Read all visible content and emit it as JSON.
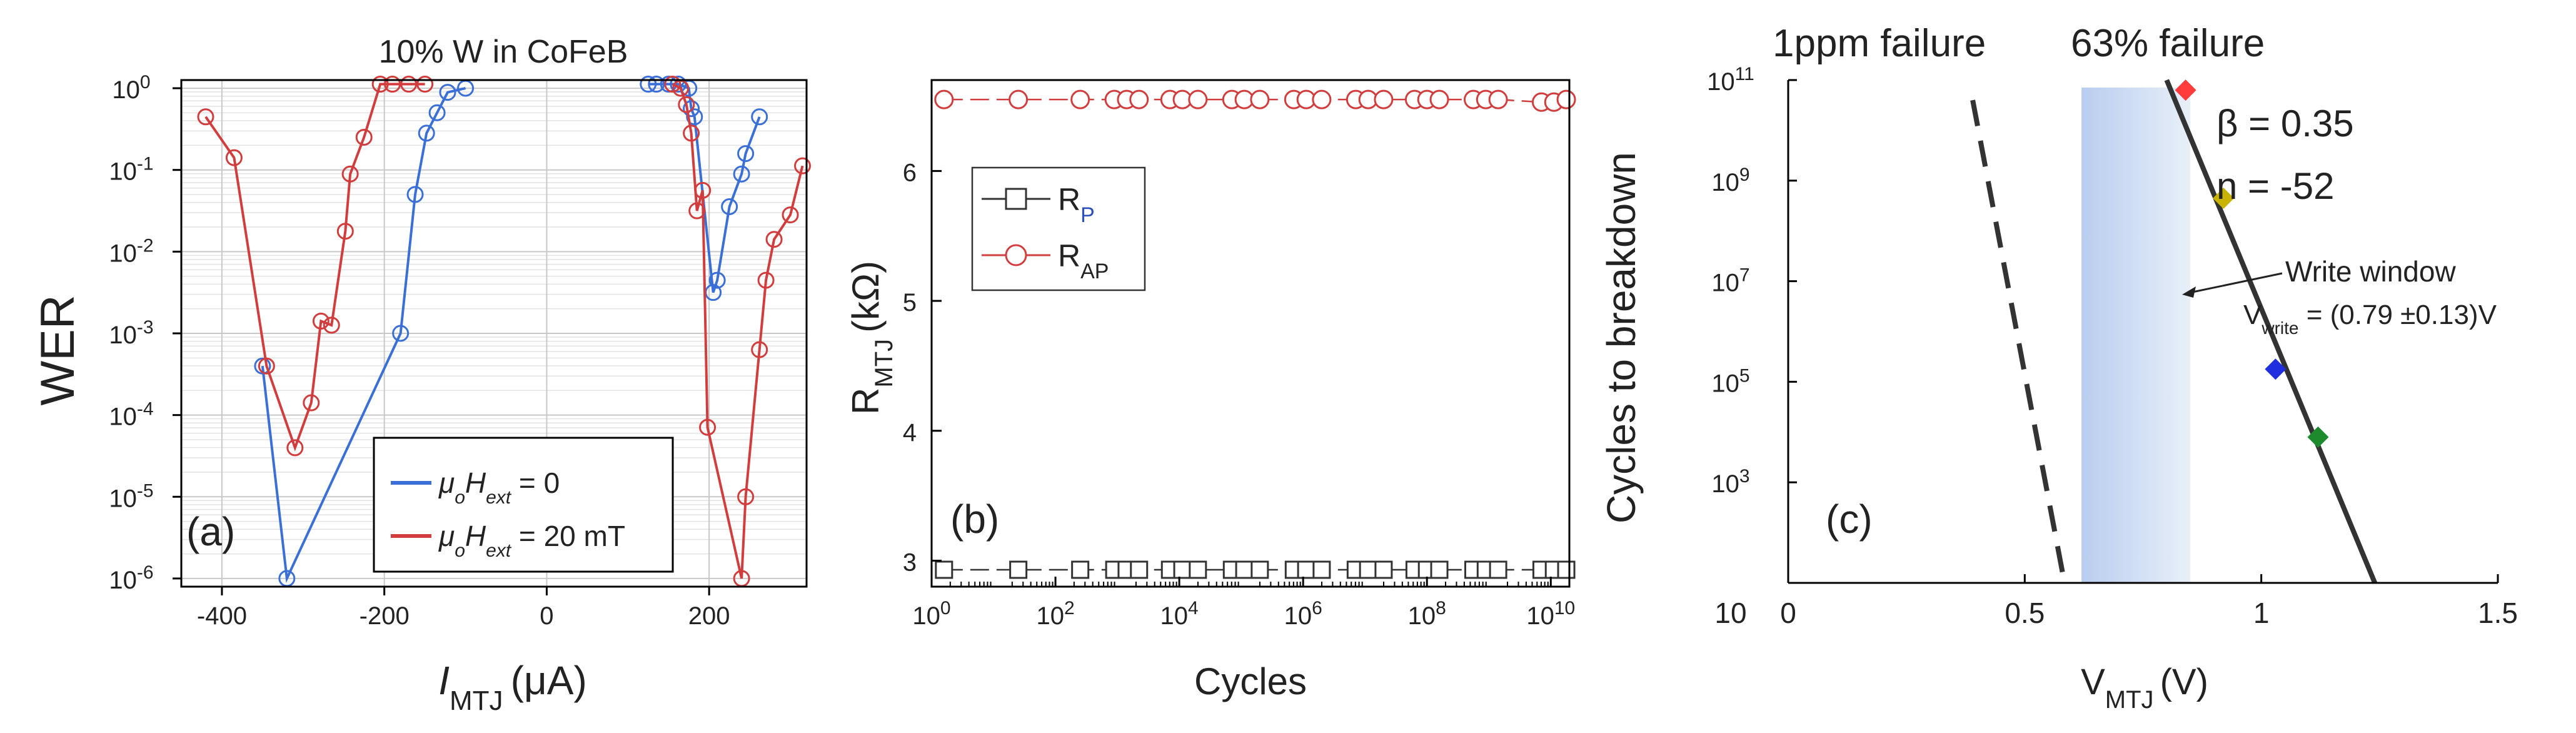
{
  "chart_data": [
    {
      "type": "line",
      "panel": "(a)",
      "title": "10% W in CoFeB",
      "xlabel_main": "I",
      "xlabel_sub": "MTJ",
      "xlabel_unit": "(μA)",
      "ylabel": "WER",
      "xlim": [
        -450,
        320
      ],
      "ylim_exp": [
        -6.1,
        0.1
      ],
      "x_ticks": [
        -400,
        -200,
        0,
        200
      ],
      "x_tick_labels": [
        "-400",
        "-200",
        "0",
        "200"
      ],
      "y_tick_exps": [
        0,
        -1,
        -2,
        -3,
        -4,
        -5,
        -6
      ],
      "y_tick_labels": [
        "0",
        "-1",
        "-2",
        "-3",
        "-4",
        "-5",
        "-6"
      ],
      "y_tick_base": "10",
      "grid": true,
      "legend_position": "bottom-right",
      "series": [
        {
          "name": "μoHext = 0",
          "legend_main": "μ",
          "legend_sub1": "o",
          "legend_mid": "H",
          "legend_sub2": "ext",
          "legend_value": " = 0",
          "color": "#3a6fd8",
          "branches": [
            {
              "x": [
                -350,
                -320,
                -180,
                -162,
                -148,
                -135,
                -122,
                -100
              ],
              "y_exp": [
                -3.4,
                -6.0,
                -3.0,
                -1.3,
                -0.55,
                -0.3,
                -0.05,
                0.0
              ]
            },
            {
              "x": [
                125,
                135,
                150,
                162,
                175,
                178,
                182,
                205,
                210,
                225,
                240,
                245,
                262
              ],
              "y_exp": [
                0.05,
                0.05,
                0.05,
                0.05,
                0.0,
                -0.25,
                -0.35,
                -2.5,
                -2.35,
                -1.45,
                -1.05,
                -0.8,
                -0.35
              ]
            }
          ]
        },
        {
          "name": "μoHext = 20 mT",
          "legend_main": "μ",
          "legend_sub1": "o",
          "legend_mid": "H",
          "legend_sub2": "ext",
          "legend_value": " = 20 mT",
          "color": "#d23c3c",
          "branches": [
            {
              "x": [
                -420,
                -385,
                -345,
                -310,
                -290,
                -278,
                -265,
                -248,
                -242,
                -225,
                -205,
                -190,
                -170,
                -150
              ],
              "y_exp": [
                -0.35,
                -0.85,
                -3.4,
                -4.4,
                -3.85,
                -2.85,
                -2.9,
                -1.75,
                -1.05,
                -0.6,
                0.05,
                0.05,
                0.05,
                0.05
              ]
            },
            {
              "x": [
                155,
                165,
                172,
                178,
                185,
                192,
                198,
                240,
                245,
                262,
                270,
                280,
                300,
                315
              ],
              "y_exp": [
                0.05,
                0.0,
                -0.2,
                -0.55,
                -1.5,
                -1.25,
                -4.15,
                -6.0,
                -5.0,
                -3.2,
                -2.35,
                -1.85,
                -1.55,
                -0.95
              ]
            }
          ]
        }
      ]
    },
    {
      "type": "scatter",
      "panel": "(b)",
      "xlabel": "Cycles",
      "ylabel_main": "R",
      "ylabel_sub": "MTJ",
      "ylabel_unit": "(kΩ)",
      "xlim_exp": [
        0,
        10.3
      ],
      "ylim": [
        2.8,
        6.7
      ],
      "x_tick_exps": [
        0,
        2,
        4,
        6,
        8,
        10
      ],
      "x_tick_labels": [
        "0",
        "2",
        "4",
        "6",
        "8",
        "10"
      ],
      "x_tick_base": "10",
      "y_ticks": [
        3,
        4,
        5,
        6
      ],
      "y_tick_labels": [
        "3",
        "4",
        "5",
        "6"
      ],
      "grid": false,
      "legend_position": "top-left",
      "series": [
        {
          "name": "RP",
          "legend_main": "R",
          "legend_sub": "P",
          "marker": "square",
          "color": "#333333",
          "value": 2.93,
          "x_exp": [
            0.2,
            1.4,
            2.4,
            2.95,
            3.15,
            3.35,
            3.85,
            4.05,
            4.3,
            4.85,
            5.05,
            5.3,
            5.85,
            6.05,
            6.3,
            6.85,
            7.05,
            7.3,
            7.8,
            8.0,
            8.2,
            8.75,
            8.95,
            9.15,
            9.85,
            10.05,
            10.25
          ]
        },
        {
          "name": "RAP",
          "legend_main": "R",
          "legend_sub": "AP",
          "marker": "circle",
          "color": "#d23c3c",
          "x_exp": [
            0.2,
            1.4,
            2.4,
            2.95,
            3.15,
            3.35,
            3.85,
            4.05,
            4.3,
            4.85,
            5.05,
            5.3,
            5.85,
            6.05,
            6.3,
            6.85,
            7.05,
            7.3,
            7.8,
            8.0,
            8.2,
            8.75,
            8.95,
            9.15,
            9.85,
            10.05,
            10.25
          ],
          "values": [
            6.55,
            6.55,
            6.55,
            6.55,
            6.55,
            6.55,
            6.55,
            6.55,
            6.55,
            6.55,
            6.55,
            6.55,
            6.55,
            6.55,
            6.55,
            6.55,
            6.55,
            6.55,
            6.55,
            6.55,
            6.55,
            6.55,
            6.55,
            6.55,
            6.53,
            6.53,
            6.55
          ]
        }
      ]
    },
    {
      "type": "scatter",
      "panel": "(c)",
      "xlabel_main": "V",
      "xlabel_sub": "MTJ",
      "xlabel_unit": "(V)",
      "ylabel": "Cycles to breakdown",
      "xlim": [
        0,
        1.5
      ],
      "ylim_exp": [
        1,
        11
      ],
      "x_ticks": [
        0,
        0.5,
        1,
        1.5
      ],
      "x_tick_labels": [
        "0",
        "0.5",
        "1",
        "1.5"
      ],
      "y_tick_exps": [
        11,
        9,
        7,
        5,
        3
      ],
      "y_tick_labels": [
        "11",
        "9",
        "7",
        "5",
        "3"
      ],
      "y_tick_base": "10",
      "y_bottom_label": "10",
      "top_label_left": "1ppm failure",
      "top_label_right": "63% failure",
      "beta_label": "β = 0.35",
      "n_label": "n = -52",
      "write_window_label": "Write window",
      "vwrite_main": "V",
      "vwrite_sub": "write",
      "vwrite_value": " = (0.79 ±0.13)V",
      "write_window_range_v": [
        0.62,
        0.85
      ],
      "fit_line_63": {
        "x": [
          0.8,
          1.24
        ],
        "y_exp": [
          11.0,
          1.0
        ]
      },
      "fit_line_1ppm": {
        "x": [
          0.39,
          0.58
        ],
        "y_exp": [
          10.6,
          1.2
        ]
      },
      "points": [
        {
          "x": 0.84,
          "y_exp": 10.8,
          "color": "#ff3b3b"
        },
        {
          "x": 0.92,
          "y_exp": 8.65,
          "color": "#c8b400"
        },
        {
          "x": 1.03,
          "y_exp": 5.25,
          "color": "#1f2fe0"
        },
        {
          "x": 1.12,
          "y_exp": 3.9,
          "color": "#1e8a2e"
        }
      ]
    }
  ]
}
